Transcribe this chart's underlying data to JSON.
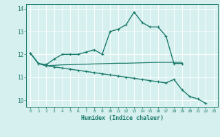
{
  "title": "",
  "xlabel": "Humidex (Indice chaleur)",
  "ylabel": "",
  "background_color": "#d6efef",
  "grid_color": "#ffffff",
  "line_color": "#1a7a6a",
  "xlim": [
    -0.5,
    23.5
  ],
  "ylim": [
    9.7,
    14.2
  ],
  "yticks": [
    10,
    11,
    12,
    13,
    14
  ],
  "xticks": [
    0,
    1,
    2,
    3,
    4,
    5,
    6,
    7,
    8,
    9,
    10,
    11,
    12,
    13,
    14,
    15,
    16,
    17,
    18,
    19,
    20,
    21,
    22,
    23
  ],
  "series": [
    {
      "x": [
        0,
        1,
        2,
        3,
        4,
        5,
        6,
        7,
        8,
        9,
        10,
        11,
        12,
        13,
        14,
        15,
        16,
        17,
        18,
        19,
        20,
        21,
        22,
        23
      ],
      "y": [
        12.05,
        11.6,
        11.55,
        11.8,
        12.0,
        12.0,
        12.0,
        12.1,
        12.2,
        12.0,
        13.0,
        13.1,
        13.3,
        13.85,
        13.4,
        13.2,
        13.2,
        12.8,
        11.6,
        11.6,
        null,
        null,
        null,
        null
      ],
      "marker": "+",
      "linewidth": 1.0,
      "markersize": 3.5
    },
    {
      "x": [
        0,
        1,
        2,
        3,
        4,
        5,
        6,
        7,
        8,
        9,
        10,
        11,
        12,
        13,
        14,
        15,
        16,
        17,
        18,
        19,
        20,
        21,
        22,
        23
      ],
      "y": [
        12.05,
        11.6,
        11.5,
        11.52,
        11.54,
        11.55,
        11.56,
        11.57,
        11.58,
        11.59,
        11.6,
        11.61,
        11.61,
        11.62,
        11.63,
        11.64,
        11.65,
        11.65,
        11.65,
        11.65,
        null,
        null,
        null,
        null
      ],
      "marker": null,
      "linewidth": 0.9,
      "markersize": 0
    },
    {
      "x": [
        0,
        1,
        2,
        3,
        4,
        5,
        6,
        7,
        8,
        9,
        10,
        11,
        12,
        13,
        14,
        15,
        16,
        17,
        18,
        19,
        20,
        21,
        22,
        23
      ],
      "y": [
        12.05,
        11.6,
        11.5,
        11.45,
        11.4,
        11.35,
        11.3,
        11.25,
        11.2,
        11.15,
        11.1,
        11.05,
        11.0,
        10.95,
        10.9,
        10.85,
        10.8,
        10.75,
        10.9,
        10.45,
        10.15,
        10.05,
        9.85,
        null
      ],
      "marker": "+",
      "linewidth": 1.0,
      "markersize": 3.5
    }
  ]
}
